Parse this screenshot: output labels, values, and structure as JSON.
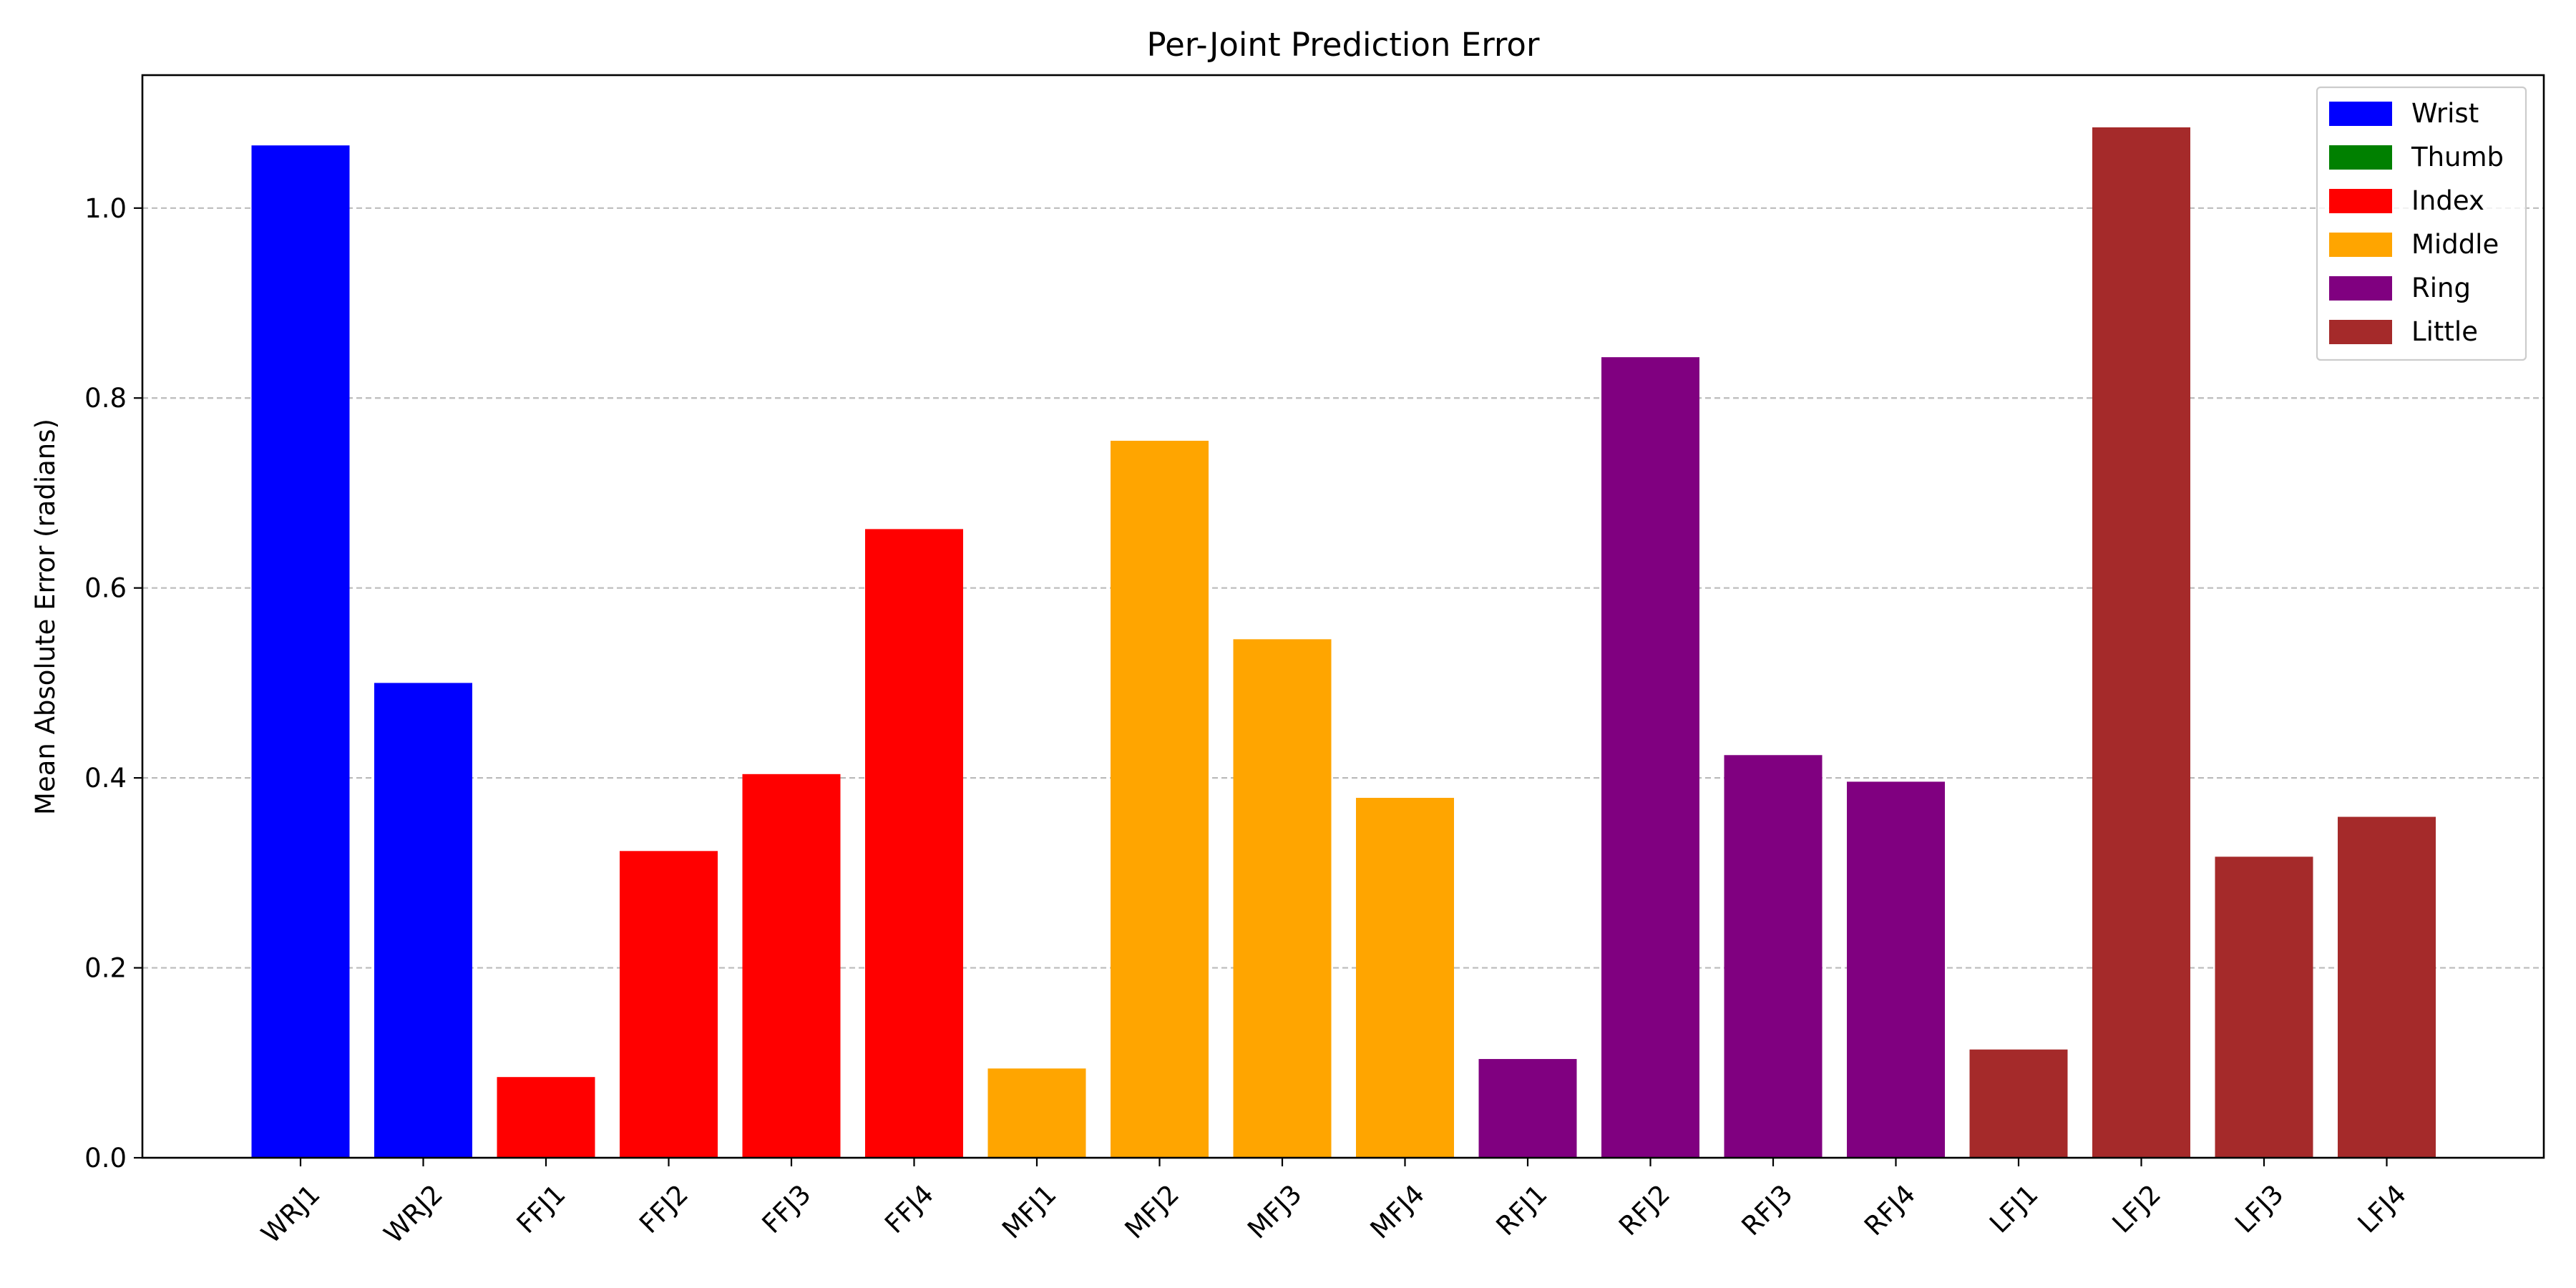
{
  "chart_data": {
    "type": "bar",
    "title": "Per-Joint Prediction Error",
    "xlabel": "",
    "ylabel": "Mean Absolute Error (radians)",
    "ylim": [
      0,
      1.14
    ],
    "yticks": [
      "0.0",
      "0.2",
      "0.4",
      "0.6",
      "0.8",
      "1.0"
    ],
    "grid": "y-dashed",
    "legend_position": "top-right",
    "categories": [
      "WRJ1",
      "WRJ2",
      "FFJ1",
      "FFJ2",
      "FFJ3",
      "FFJ4",
      "MFJ1",
      "MFJ2",
      "MFJ3",
      "MFJ4",
      "RFJ1",
      "RFJ2",
      "RFJ3",
      "RFJ4",
      "LFJ1",
      "LFJ2",
      "LFJ3",
      "LFJ4"
    ],
    "values": [
      1.066,
      0.5,
      0.085,
      0.323,
      0.404,
      0.662,
      0.094,
      0.755,
      0.546,
      0.379,
      0.104,
      0.843,
      0.424,
      0.396,
      0.114,
      1.085,
      0.317,
      0.359
    ],
    "groups": [
      "Wrist",
      "Wrist",
      "Index",
      "Index",
      "Index",
      "Index",
      "Middle",
      "Middle",
      "Middle",
      "Middle",
      "Ring",
      "Ring",
      "Ring",
      "Ring",
      "Little",
      "Little",
      "Little",
      "Little"
    ],
    "legend": [
      {
        "name": "Wrist",
        "color": "#0000ff"
      },
      {
        "name": "Thumb",
        "color": "#008000"
      },
      {
        "name": "Index",
        "color": "#ff0000"
      },
      {
        "name": "Middle",
        "color": "#ffa500"
      },
      {
        "name": "Ring",
        "color": "#800080"
      },
      {
        "name": "Little",
        "color": "#a52a2a"
      }
    ]
  }
}
